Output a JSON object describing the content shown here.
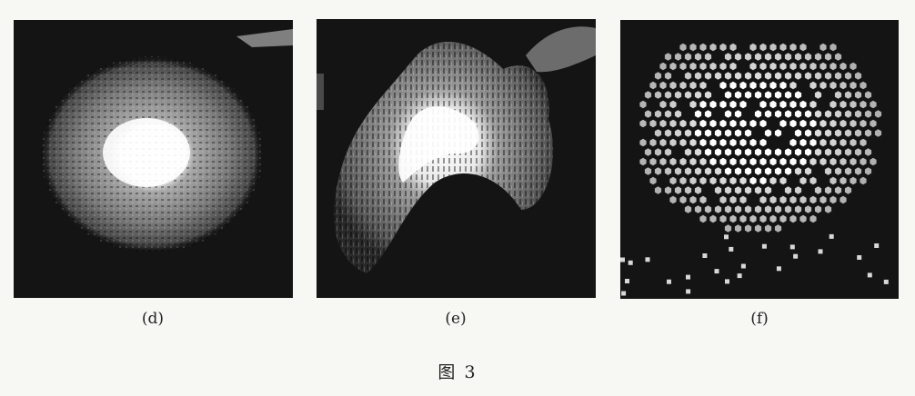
{
  "panels": [
    {
      "label": "(d)",
      "content": "diffuse-halo"
    },
    {
      "label": "(e)",
      "content": "arc-halo"
    },
    {
      "label": "(f)",
      "content": "hexagonal-cells"
    }
  ],
  "figure_caption": "图 3",
  "colors": {
    "page_background": "#f7f7f4",
    "panel_background": "#141414",
    "text": "#222222"
  }
}
